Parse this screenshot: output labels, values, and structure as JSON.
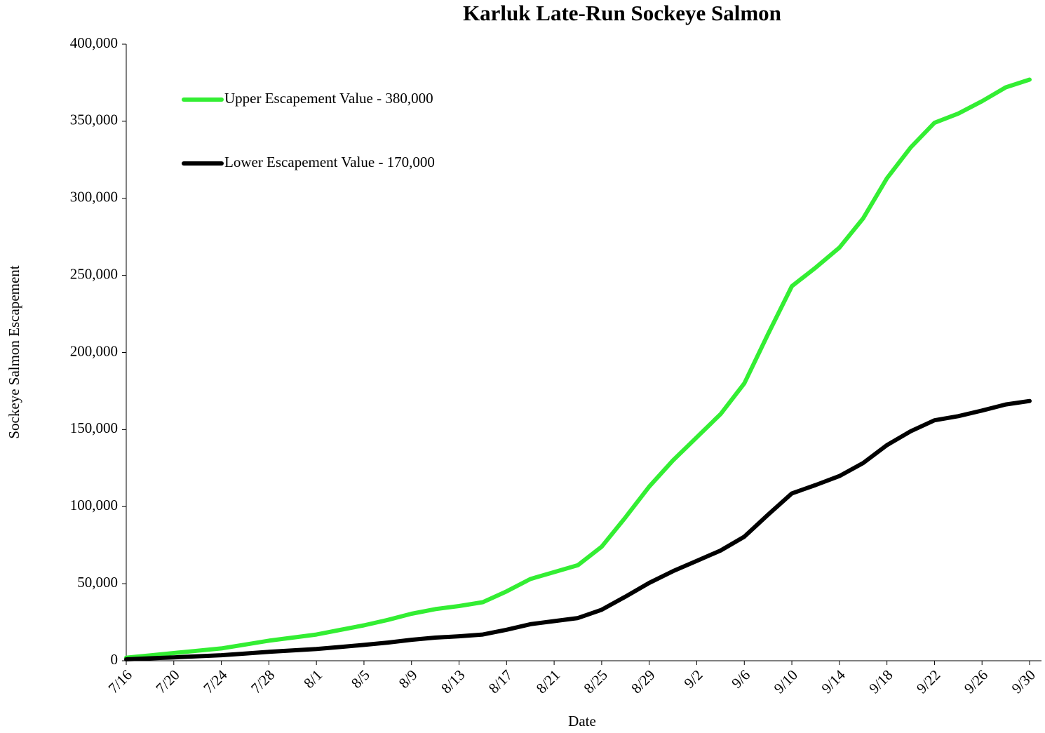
{
  "chart_data": {
    "type": "line",
    "title": "Karluk Late-Run Sockeye Salmon",
    "xlabel": "Date",
    "ylabel": "Sockeye Salmon Escapement",
    "categories": [
      "7/16",
      null,
      "7/20",
      null,
      "7/24",
      null,
      "7/28",
      null,
      "8/1",
      null,
      "8/5",
      null,
      "8/9",
      null,
      "8/13",
      null,
      "8/17",
      null,
      "8/21",
      null,
      "8/25",
      null,
      "8/29",
      null,
      "9/2",
      null,
      "9/6",
      null,
      "9/10",
      null,
      "9/14",
      null,
      "9/18",
      null,
      "9/22",
      null,
      "9/26",
      null,
      "9/30"
    ],
    "series": [
      {
        "name": "Upper Escapement Value - 380,000",
        "color": "#33ee33",
        "values": [
          2000,
          3500,
          5000,
          6500,
          8000,
          10500,
          13000,
          15000,
          17000,
          20000,
          23000,
          26500,
          30500,
          33500,
          35500,
          38000,
          45000,
          53000,
          57500,
          62000,
          74000,
          93000,
          113000,
          130000,
          145000,
          160000,
          180000,
          212000,
          243000,
          255000,
          268000,
          287000,
          313000,
          333000,
          349000,
          355000,
          363000,
          372000,
          377000
        ]
      },
      {
        "name": "Lower Escapement Value - 170,000",
        "color": "#000000",
        "values": [
          900,
          1600,
          2200,
          2900,
          3600,
          4700,
          5800,
          6700,
          7600,
          8900,
          10300,
          11800,
          13600,
          15000,
          15900,
          17000,
          20100,
          23700,
          25700,
          27700,
          33100,
          41600,
          50500,
          58100,
          64800,
          71500,
          80500,
          94800,
          108600,
          114000,
          119800,
          128300,
          139900,
          148900,
          156000,
          158700,
          162300,
          166300,
          168500
        ]
      }
    ],
    "ylim": [
      0,
      400000
    ],
    "yticks": [
      0,
      {
        "value": 50000,
        "label": "50,000"
      },
      {
        "value": 100000,
        "label": "100,000"
      },
      {
        "value": 150000,
        "label": "150,000"
      },
      {
        "value": 200000,
        "label": "200,000"
      },
      {
        "value": 250000,
        "label": "250,000"
      },
      {
        "value": 300000,
        "label": "300,000"
      },
      {
        "value": 350000,
        "label": "350,000"
      },
      {
        "value": 400000,
        "label": "400,000"
      }
    ],
    "grid": false,
    "legend": "upper left"
  }
}
